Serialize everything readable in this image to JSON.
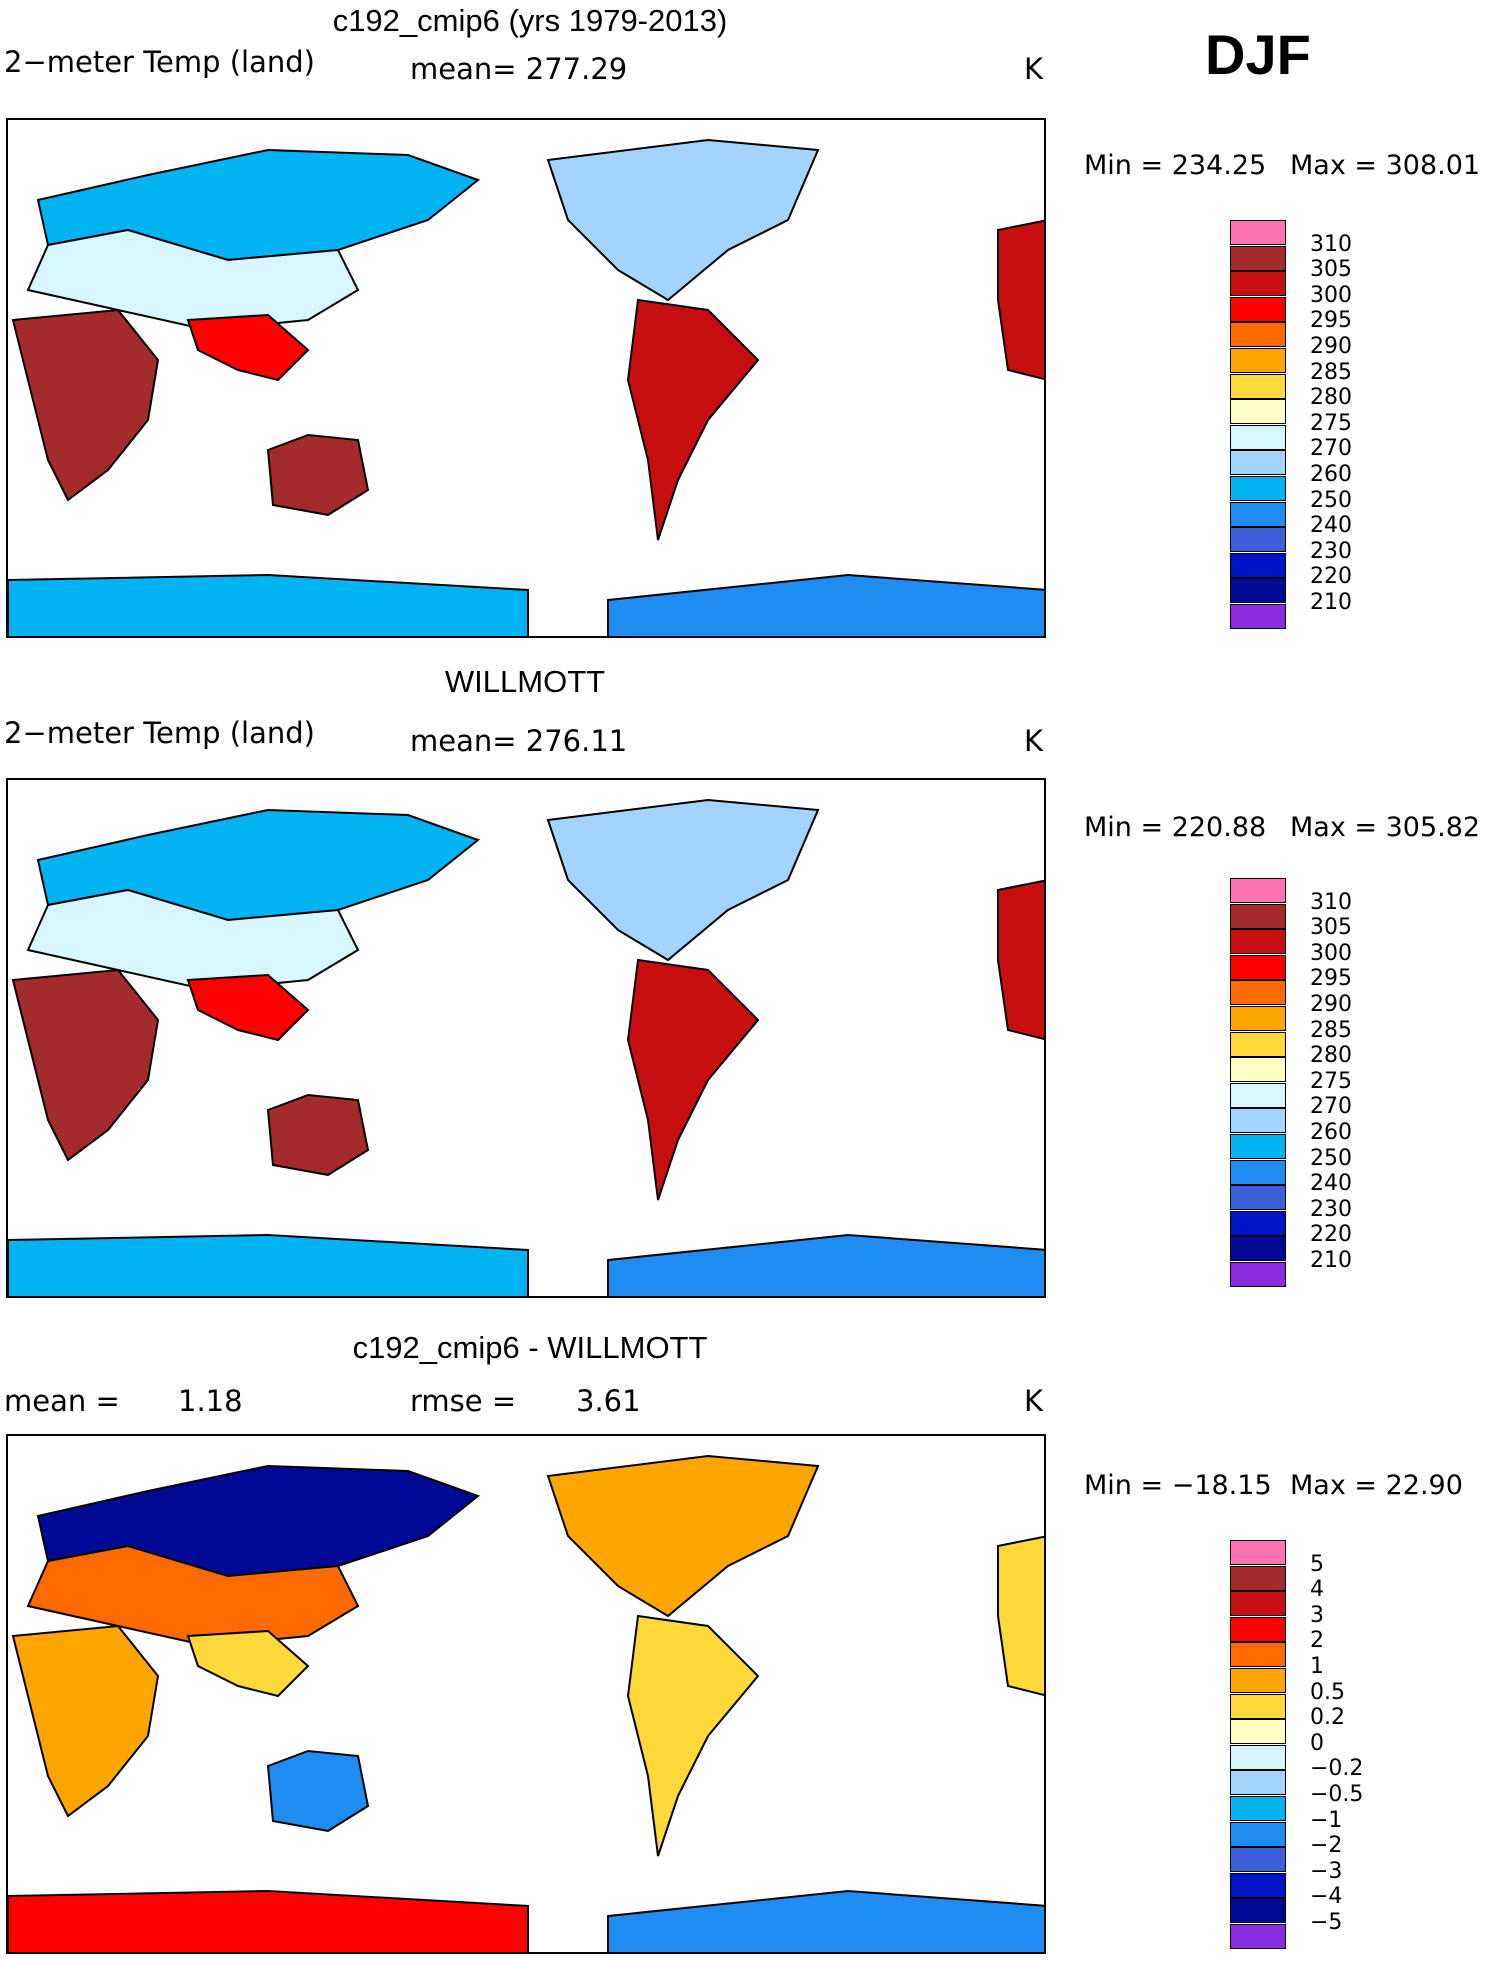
{
  "season": "DJF",
  "panels": [
    {
      "title": "c192_cmip6 (yrs 1979-2013)",
      "left_label": "2−meter Temp (land)",
      "center_label": "mean=  277.29",
      "units": "K",
      "min_label": "Min = 234.25",
      "max_label": "Max = 308.01",
      "colorbar_key": "absolute"
    },
    {
      "title": "WILLMOTT",
      "left_label": "2−meter Temp (land)",
      "center_label": "mean=  276.11",
      "units": "K",
      "min_label": "Min = 220.88",
      "max_label": "Max = 305.82",
      "colorbar_key": "absolute"
    },
    {
      "title": "c192_cmip6 - WILLMOTT",
      "left_label": "mean =",
      "left_value": "1.18",
      "center_label": "rmse =",
      "center_value": "3.61",
      "units": "K",
      "min_label": "Min = −18.15",
      "max_label": "Max =   22.90",
      "colorbar_key": "difference"
    }
  ],
  "colorbars": {
    "absolute": {
      "colors": [
        "#ff73b3",
        "#a52a2a",
        "#c80f0f",
        "#ff0000",
        "#ff6a00",
        "#ffa500",
        "#ffd83a",
        "#ffffc4",
        "#d8f6ff",
        "#a3d3ff",
        "#00b4f4",
        "#1e8cf0",
        "#3c60dc",
        "#0014c8",
        "#000896",
        "#8a2be2"
      ],
      "labels": [
        "310",
        "305",
        "300",
        "295",
        "290",
        "285",
        "280",
        "275",
        "270",
        "260",
        "250",
        "240",
        "230",
        "220",
        "210"
      ]
    },
    "difference": {
      "colors": [
        "#ff73b3",
        "#a52a2a",
        "#c80f0f",
        "#ff0000",
        "#ff6a00",
        "#ffa500",
        "#ffd83a",
        "#ffffc4",
        "#d8f6ff",
        "#a3d3ff",
        "#00b4f4",
        "#1e8cf0",
        "#3c60dc",
        "#0014c8",
        "#000896",
        "#8a2be2"
      ],
      "labels": [
        "5",
        "4",
        "3",
        "2",
        "1",
        "0.5",
        "0.2",
        "0",
        "−0.2",
        "−0.5",
        "−1",
        "−2",
        "−3",
        "−4",
        "−5"
      ]
    }
  },
  "chart_data": [
    {
      "type": "heatmap",
      "title": "c192_cmip6 (yrs 1979-2013)",
      "variable": "2-meter Temp (land)",
      "units": "K",
      "mean": 277.29,
      "min": 234.25,
      "max": 308.01,
      "levels": [
        210,
        220,
        230,
        240,
        250,
        260,
        270,
        275,
        280,
        285,
        290,
        295,
        300,
        305,
        310
      ]
    },
    {
      "type": "heatmap",
      "title": "WILLMOTT",
      "variable": "2-meter Temp (land)",
      "units": "K",
      "mean": 276.11,
      "min": 220.88,
      "max": 305.82,
      "levels": [
        210,
        220,
        230,
        240,
        250,
        260,
        270,
        275,
        280,
        285,
        290,
        295,
        300,
        305,
        310
      ]
    },
    {
      "type": "heatmap",
      "title": "c192_cmip6 - WILLMOTT",
      "units": "K",
      "mean": 1.18,
      "rmse": 3.61,
      "min": -18.15,
      "max": 22.9,
      "levels": [
        -5,
        -4,
        -3,
        -2,
        -1,
        -0.5,
        -0.2,
        0,
        0.2,
        0.5,
        1,
        2,
        3,
        4,
        5
      ]
    }
  ]
}
